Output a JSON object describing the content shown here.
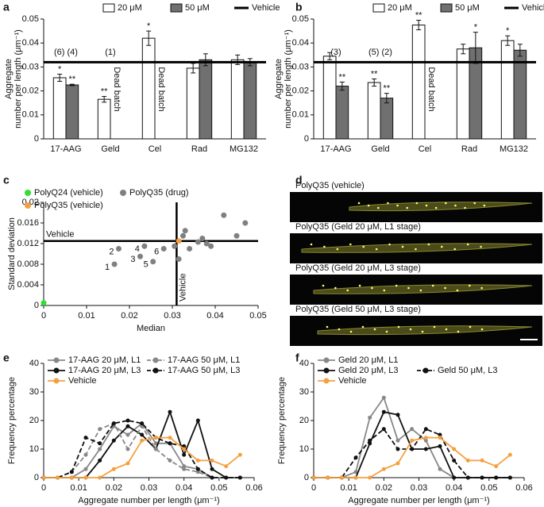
{
  "chart_data": [
    {
      "type": "bar",
      "label": "a",
      "ylabel": [
        "Aggregate",
        "number per length (μm⁻¹)"
      ],
      "categories": [
        "17-AAG",
        "Geld",
        "Cel",
        "Rad",
        "MG132"
      ],
      "series": [
        {
          "name": "20 μM",
          "color": "#ffffff",
          "values": [
            0.0255,
            0.0165,
            0.042,
            0.0295,
            0.033
          ],
          "errors": [
            0.0015,
            0.0012,
            0.003,
            0.002,
            0.002
          ],
          "significance": [
            "*",
            "**",
            "*",
            null,
            null
          ]
        },
        {
          "name": "50 μM",
          "color": "#707070",
          "values": [
            0.0225,
            null,
            null,
            0.033,
            0.032
          ],
          "errors": [
            0.0003,
            null,
            null,
            0.0025,
            0.0015
          ],
          "significance": [
            "**",
            null,
            null,
            null,
            null
          ]
        }
      ],
      "reference_line": {
        "name": "Vehicle",
        "value": 0.032
      },
      "annotations": [
        {
          "text": "(6) (4)",
          "category": "17-AAG"
        },
        {
          "text": "(1)",
          "category": "Geld"
        },
        {
          "text": "Dead batch",
          "category": "Geld",
          "series": "50 μM"
        },
        {
          "text": "Dead batch",
          "category": "Cel",
          "series": "50 μM"
        }
      ],
      "ylim": [
        0,
        0.05
      ],
      "yticks": [
        0,
        0.01,
        0.02,
        0.03,
        0.04,
        0.05
      ]
    },
    {
      "type": "bar",
      "label": "b",
      "ylabel": [
        "Aggregate",
        "number per length (μm⁻¹)"
      ],
      "categories": [
        "17-AAG",
        "Geld",
        "Cel",
        "Rad",
        "MG132"
      ],
      "series": [
        {
          "name": "20 μM",
          "color": "#ffffff",
          "values": [
            0.0345,
            0.0235,
            0.0475,
            0.0375,
            0.041
          ],
          "errors": [
            0.0015,
            0.0015,
            0.002,
            0.002,
            0.002
          ],
          "significance": [
            null,
            "**",
            "**",
            null,
            "*"
          ]
        },
        {
          "name": "50 μM",
          "color": "#707070",
          "values": [
            0.022,
            0.017,
            null,
            0.038,
            0.037
          ],
          "errors": [
            0.0017,
            0.002,
            null,
            0.0065,
            0.0025
          ],
          "significance": [
            "**",
            "**",
            null,
            "*",
            null
          ]
        }
      ],
      "reference_line": {
        "name": "Vehicle",
        "value": 0.032
      },
      "annotations": [
        {
          "text": "(3)",
          "category": "17-AAG"
        },
        {
          "text": "(5) (2)",
          "category": "Geld"
        },
        {
          "text": "Dead batch",
          "category": "Cel",
          "series": "50 μM"
        }
      ],
      "ylim": [
        0,
        0.05
      ],
      "yticks": [
        0,
        0.01,
        0.02,
        0.03,
        0.04,
        0.05
      ]
    },
    {
      "type": "scatter",
      "label": "c",
      "xlabel": "Median",
      "ylabel": [
        "Standard deviation"
      ],
      "series": [
        {
          "name": "PolyQ24 (vehicle)",
          "color": "#33dd33",
          "x": [
            0
          ],
          "y": [
            0.0005
          ],
          "labels": [
            null
          ]
        },
        {
          "name": "PolyQ35 (vehicle)",
          "color": "#f5a040",
          "x": [
            0.0315
          ],
          "y": [
            0.0125
          ],
          "labels": [
            null
          ]
        },
        {
          "name": "PolyQ35 (drug)",
          "color": "#808080",
          "x": [
            0.0165,
            0.0175,
            0.0225,
            0.0235,
            0.0255,
            0.028,
            0.0305,
            0.0315,
            0.0325,
            0.033,
            0.034,
            0.036,
            0.037,
            0.038,
            0.039,
            0.042,
            0.045,
            0.047
          ],
          "y": [
            0.008,
            0.011,
            0.0095,
            0.0115,
            0.0085,
            0.011,
            0.0115,
            0.009,
            0.0135,
            0.0145,
            0.011,
            0.0123,
            0.013,
            0.012,
            0.0115,
            0.0175,
            0.0135,
            0.016
          ],
          "labels": [
            "1",
            "2",
            "3",
            "4",
            "5",
            "6",
            null,
            null,
            null,
            null,
            null,
            null,
            null,
            null,
            null,
            null,
            null,
            null
          ]
        }
      ],
      "reference_lines": [
        {
          "axis": "x",
          "value": 0.031,
          "label": "Vehicle"
        },
        {
          "axis": "y",
          "value": 0.0125,
          "label": "Vehicle"
        }
      ],
      "xlim": [
        0,
        0.05
      ],
      "xticks": [
        0,
        0.01,
        0.02,
        0.03,
        0.04,
        0.05
      ],
      "ylim": [
        0,
        0.02
      ],
      "yticks": [
        0,
        0.004,
        0.008,
        0.012,
        0.016,
        0.02
      ]
    },
    {
      "type": "line",
      "label": "e",
      "xlabel": "Aggregate number per length (μm⁻¹)",
      "ylabel": [
        "Frequency percentage"
      ],
      "x": [
        0,
        0.004,
        0.008,
        0.012,
        0.016,
        0.02,
        0.024,
        0.028,
        0.032,
        0.036,
        0.04,
        0.044,
        0.048,
        0.052,
        0.056
      ],
      "series": [
        {
          "name": "17-AAG 20 μM, L1",
          "color": "#888888",
          "dashed": false,
          "values": [
            0,
            0,
            0,
            3,
            10,
            18,
            15,
            19,
            12,
            12,
            4,
            3,
            0,
            0,
            0
          ]
        },
        {
          "name": "17-AAG 20 μM, L3",
          "color": "#111111",
          "dashed": false,
          "values": [
            0,
            0,
            0,
            0,
            6,
            13,
            18,
            15,
            10,
            23,
            8,
            20,
            3,
            0,
            0
          ]
        },
        {
          "name": "17-AAG 50 μM, L1",
          "color": "#888888",
          "dashed": true,
          "values": [
            0,
            0,
            2,
            8,
            17,
            19,
            10,
            18,
            10,
            6,
            3,
            2,
            0,
            0,
            0
          ]
        },
        {
          "name": "17-AAG 50 μM, L3",
          "color": "#111111",
          "dashed": true,
          "values": [
            0,
            0,
            2,
            14,
            12,
            19,
            20,
            19,
            14,
            12,
            11,
            3,
            0,
            0,
            0
          ]
        },
        {
          "name": "Vehicle",
          "color": "#f5a040",
          "dashed": false,
          "values": [
            0,
            0,
            0,
            0,
            0,
            3,
            5,
            13,
            14,
            14,
            10,
            6,
            6,
            4,
            8
          ]
        }
      ],
      "xlim": [
        0,
        0.06
      ],
      "xticks": [
        0,
        0.01,
        0.02,
        0.03,
        0.04,
        0.05,
        0.06
      ],
      "ylim": [
        0,
        40
      ],
      "yticks": [
        0,
        10,
        20,
        30,
        40
      ]
    },
    {
      "type": "line",
      "label": "f",
      "xlabel": "Aggregate number per length (μm⁻¹)",
      "ylabel": [
        "Frequency percentage"
      ],
      "x": [
        0,
        0.004,
        0.008,
        0.012,
        0.016,
        0.02,
        0.024,
        0.028,
        0.032,
        0.036,
        0.04,
        0.044,
        0.048,
        0.052,
        0.056
      ],
      "series": [
        {
          "name": "Geld 20 μM, L1",
          "color": "#888888",
          "dashed": false,
          "values": [
            0,
            0,
            0,
            2,
            21,
            28,
            13,
            17,
            13,
            3,
            0,
            0,
            0,
            0,
            0
          ]
        },
        {
          "name": "Geld 20 μM, L3",
          "color": "#111111",
          "dashed": false,
          "values": [
            0,
            0,
            0,
            0,
            12,
            23,
            22,
            10,
            10,
            11,
            0,
            0,
            0,
            0,
            0
          ]
        },
        {
          "name": "Geld 50 μM, L3",
          "color": "#111111",
          "dashed": true,
          "values": [
            0,
            0,
            0,
            7,
            13,
            17,
            10,
            10,
            17,
            15,
            6,
            0,
            0,
            0,
            0
          ]
        },
        {
          "name": "Vehicle",
          "color": "#f5a040",
          "dashed": false,
          "values": [
            0,
            0,
            0,
            0,
            0,
            3,
            5,
            13,
            14,
            14,
            10,
            6,
            6,
            4,
            8
          ]
        }
      ],
      "xlim": [
        0,
        0.06
      ],
      "xticks": [
        0,
        0.01,
        0.02,
        0.03,
        0.04,
        0.05,
        0.06
      ],
      "ylim": [
        0,
        40
      ],
      "yticks": [
        0,
        10,
        20,
        30,
        40
      ]
    }
  ],
  "images": {
    "label": "d",
    "titles": [
      "PolyQ35 (vehicle)",
      "PolyQ35 (Geld 20 μM, L1 stage)",
      "PolyQ35 (Geld 20 μM, L3 stage)",
      "PolyQ35 (Geld 50 μM, L3 stage)"
    ]
  }
}
